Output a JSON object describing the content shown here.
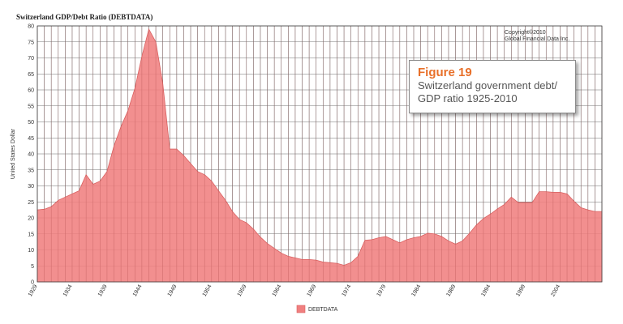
{
  "figure_box": {
    "label": "Figure 19",
    "caption_line1": "Switzerland government debt/",
    "caption_line2": "GDP ratio 1925-2010"
  },
  "copyright": {
    "line1": "Copyright©2010",
    "line2": "Global Financial Data Inc."
  },
  "colors": {
    "area_fill": "#f07f7f",
    "area_stroke": "#d96060",
    "grid": "#6f6f6f",
    "figure_label": "#e8702a"
  },
  "chart_data": {
    "type": "area",
    "title": "Switzerland GDP/Debt Ratio (DEBTDATA)",
    "ylabel": "United States Dollar",
    "xlabel": "",
    "ylim": [
      0,
      80
    ],
    "xlim": [
      1929,
      2010
    ],
    "y_ticks": [
      0,
      5,
      10,
      15,
      20,
      25,
      30,
      35,
      40,
      45,
      50,
      55,
      60,
      65,
      70,
      75,
      80
    ],
    "x_ticks": [
      1929,
      1934,
      1939,
      1944,
      1949,
      1954,
      1959,
      1964,
      1969,
      1974,
      1979,
      1984,
      1989,
      1994,
      1999,
      2004
    ],
    "legend": [
      "DEBTDATA"
    ],
    "legend_position": "bottom",
    "grid": true,
    "series": [
      {
        "name": "DEBTDATA",
        "x": [
          1929,
          1930,
          1931,
          1932,
          1933,
          1934,
          1935,
          1936,
          1937,
          1938,
          1939,
          1940,
          1941,
          1942,
          1943,
          1944,
          1945,
          1946,
          1947,
          1948,
          1949,
          1950,
          1951,
          1952,
          1953,
          1954,
          1955,
          1956,
          1957,
          1958,
          1959,
          1960,
          1961,
          1962,
          1963,
          1964,
          1965,
          1966,
          1967,
          1968,
          1969,
          1970,
          1971,
          1972,
          1973,
          1974,
          1975,
          1976,
          1977,
          1978,
          1979,
          1980,
          1981,
          1982,
          1983,
          1984,
          1985,
          1986,
          1987,
          1988,
          1989,
          1990,
          1991,
          1992,
          1993,
          1994,
          1995,
          1996,
          1997,
          1998,
          1999,
          2000,
          2001,
          2002,
          2003,
          2004,
          2005,
          2006,
          2007,
          2008,
          2009,
          2010
        ],
        "values": [
          22.5,
          22.7,
          23.5,
          25.5,
          26.5,
          27.5,
          28.5,
          33.5,
          30.5,
          31.5,
          34.5,
          42.5,
          48.5,
          53.5,
          60.5,
          70.5,
          79.0,
          75.0,
          62.0,
          41.5,
          41.5,
          39.5,
          37.0,
          34.5,
          33.5,
          31.5,
          28.5,
          25.5,
          22.0,
          19.5,
          18.5,
          16.5,
          14.0,
          12.0,
          10.5,
          9.0,
          8.0,
          7.5,
          7.0,
          7.0,
          6.8,
          6.2,
          6.0,
          5.8,
          5.2,
          6.0,
          8.0,
          13.0,
          13.2,
          13.8,
          14.2,
          13.2,
          12.2,
          13.2,
          13.8,
          14.2,
          15.2,
          15.0,
          14.2,
          12.8,
          11.8,
          12.8,
          15.2,
          17.8,
          19.8,
          21.2,
          22.8,
          24.2,
          26.5,
          24.8,
          24.8,
          24.8,
          28.2,
          28.2,
          28.0,
          28.0,
          27.5,
          25.2,
          23.2,
          22.5,
          22.0,
          22.0
        ]
      }
    ]
  }
}
